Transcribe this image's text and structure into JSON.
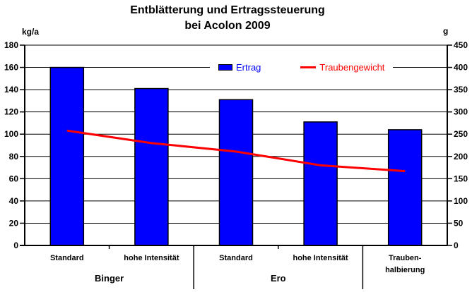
{
  "title": {
    "line1": "Entblätterung und Ertragssteuerung",
    "line2": "bei Acolon 2009"
  },
  "axes": {
    "left_unit": "kg/a",
    "right_unit": "g"
  },
  "colors": {
    "bar_fill": "#0000ff",
    "line": "#ff0000",
    "grid": "#000000",
    "background": "#ffffff",
    "text": "#000000"
  },
  "chart_data": {
    "type": "combo-bar-line",
    "title": "Entblätterung und Ertragssteuerung bei Acolon 2009",
    "categories": [
      "Standard",
      "hohe Intensität",
      "Standard",
      "hohe Intensität",
      "Trauben-\nhalbierung"
    ],
    "category_groups": [
      {
        "label": "Binger",
        "from": 0,
        "to": 2
      },
      {
        "label": "Ero",
        "from": 2,
        "to": 4
      }
    ],
    "group_divider_boundaries": [
      2,
      4
    ],
    "series": [
      {
        "name": "Ertrag",
        "type": "bar",
        "axis": "left",
        "unit": "kg/a",
        "color": "#0000ff",
        "values": [
          160,
          141,
          131,
          111,
          104
        ]
      },
      {
        "name": "Traubengewicht",
        "type": "line",
        "axis": "right",
        "unit": "g",
        "color": "#ff0000",
        "values": [
          258,
          230,
          211,
          180,
          167
        ]
      }
    ],
    "left_axis": {
      "unit": "kg/a",
      "range": [
        0,
        180
      ],
      "ticks": [
        0,
        20,
        40,
        60,
        80,
        100,
        120,
        140,
        160,
        180
      ]
    },
    "right_axis": {
      "unit": "g",
      "range": [
        0,
        450
      ],
      "ticks": [
        0,
        50,
        100,
        150,
        200,
        250,
        300,
        350,
        400,
        450
      ]
    },
    "grid": true,
    "legend_position": "top-center-inside"
  }
}
